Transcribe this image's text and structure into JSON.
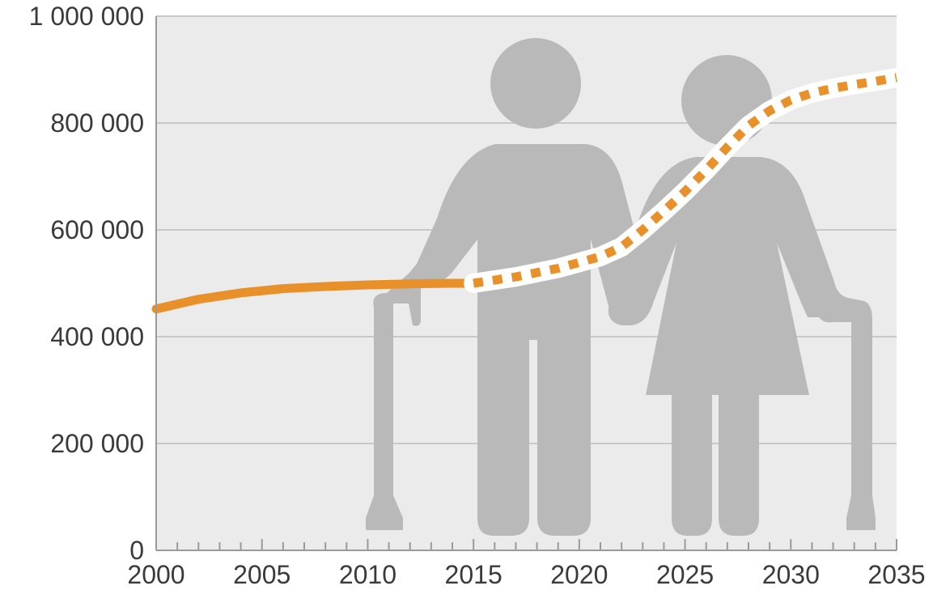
{
  "chart_data": {
    "type": "line",
    "x_ticks": [
      "2000",
      "2005",
      "2010",
      "2015",
      "2020",
      "2025",
      "2030",
      "2035"
    ],
    "y_ticks": [
      "0",
      "200 000",
      "400 000",
      "600 000",
      "800 000",
      "1 000 000"
    ],
    "xlim": [
      2000,
      2035
    ],
    "ylim": [
      0,
      1000000
    ],
    "grid": "horizontal",
    "background_illustration": "elderly-couple-with-walking-canes",
    "series": [
      {
        "style": "solid",
        "color": "#e8902a",
        "x": [
          2000,
          2002,
          2004,
          2006,
          2008,
          2010,
          2012,
          2014,
          2015
        ],
        "y": [
          452000,
          470000,
          482000,
          490000,
          494000,
          497000,
          499000,
          500000,
          500000
        ]
      },
      {
        "style": "dotted",
        "color": "#e8902a",
        "x": [
          2015,
          2017,
          2019,
          2021,
          2022,
          2023,
          2024,
          2025,
          2026,
          2027,
          2028,
          2029,
          2030,
          2031,
          2032,
          2033,
          2034,
          2035
        ],
        "y": [
          500000,
          512000,
          528000,
          550000,
          568000,
          600000,
          635000,
          672000,
          712000,
          755000,
          795000,
          823000,
          843000,
          856000,
          865000,
          872000,
          878000,
          885000
        ]
      }
    ]
  },
  "colors": {
    "plot_background": "#ebebeb",
    "gridline": "#c8c8c8",
    "illustration": "#b9b9b9",
    "axis": "#9a9a9a",
    "text": "#3a3a3a"
  }
}
